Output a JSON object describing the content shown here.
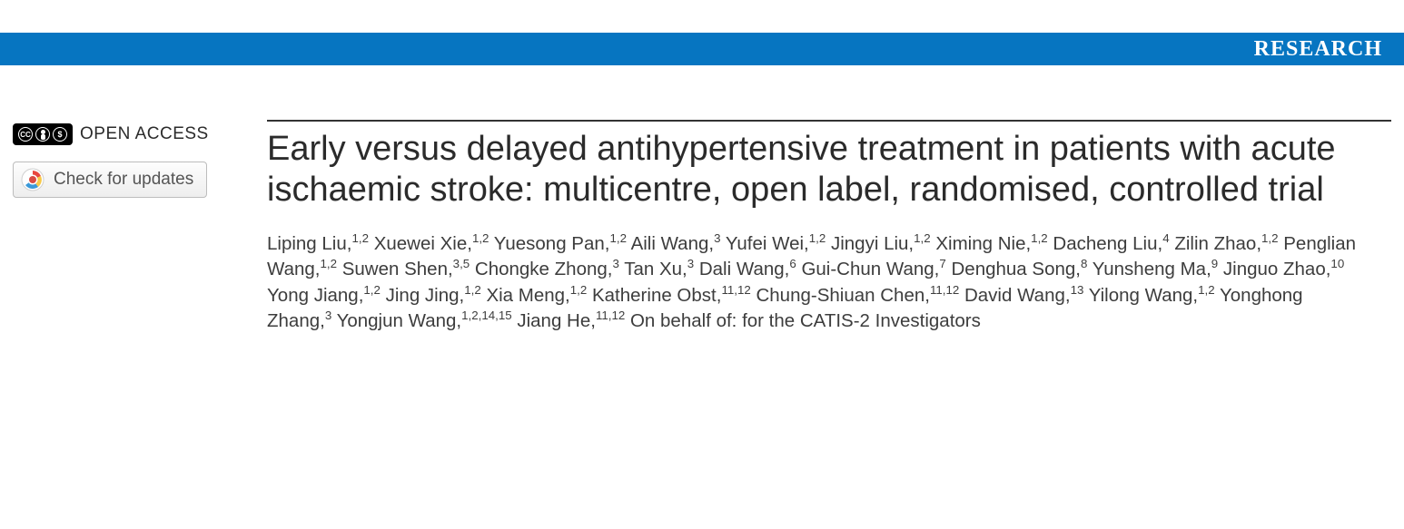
{
  "header": {
    "section_label": "RESEARCH",
    "bar_color": "#0675c1",
    "text_color": "#ffffff"
  },
  "sidebar": {
    "open_access_label": "OPEN ACCESS",
    "cc_text": "CC",
    "check_updates_label": "Check for updates"
  },
  "article": {
    "title": "Early versus delayed antihypertensive treatment in patients with acute ischaemic stroke: multicentre, open label, randomised, controlled trial",
    "authors": [
      {
        "name": "Liping Liu",
        "aff": "1,2"
      },
      {
        "name": "Xuewei Xie",
        "aff": "1,2"
      },
      {
        "name": "Yuesong Pan",
        "aff": "1,2"
      },
      {
        "name": "Aili Wang",
        "aff": "3"
      },
      {
        "name": "Yufei Wei",
        "aff": "1,2"
      },
      {
        "name": "Jingyi Liu",
        "aff": "1,2"
      },
      {
        "name": "Ximing Nie",
        "aff": "1,2"
      },
      {
        "name": "Dacheng Liu",
        "aff": "4"
      },
      {
        "name": "Zilin Zhao",
        "aff": "1,2"
      },
      {
        "name": "Penglian Wang",
        "aff": "1,2"
      },
      {
        "name": "Suwen Shen",
        "aff": "3,5"
      },
      {
        "name": "Chongke Zhong",
        "aff": "3"
      },
      {
        "name": "Tan Xu",
        "aff": "3"
      },
      {
        "name": "Dali Wang",
        "aff": "6"
      },
      {
        "name": "Gui-Chun Wang",
        "aff": "7"
      },
      {
        "name": "Denghua Song",
        "aff": "8"
      },
      {
        "name": "Yunsheng Ma",
        "aff": "9"
      },
      {
        "name": "Jinguo Zhao",
        "aff": "10"
      },
      {
        "name": "Yong Jiang",
        "aff": "1,2"
      },
      {
        "name": "Jing Jing",
        "aff": "1,2"
      },
      {
        "name": "Xia Meng",
        "aff": "1,2"
      },
      {
        "name": "Katherine Obst",
        "aff": "11,12"
      },
      {
        "name": "Chung-Shiuan Chen",
        "aff": "11,12"
      },
      {
        "name": "David Wang",
        "aff": "13"
      },
      {
        "name": "Yilong Wang",
        "aff": "1,2"
      },
      {
        "name": "Yonghong Zhang",
        "aff": "3"
      },
      {
        "name": "Yongjun Wang",
        "aff": "1,2,14,15"
      },
      {
        "name": "Jiang He",
        "aff": "11,12"
      }
    ],
    "on_behalf_text": "On behalf of: for the CATIS-2 Investigators"
  },
  "colors": {
    "title_color": "#2b2b2b",
    "author_color": "#3d3d3d",
    "rule_color": "#333333",
    "button_border": "#bcbcbc",
    "button_text": "#555555"
  }
}
